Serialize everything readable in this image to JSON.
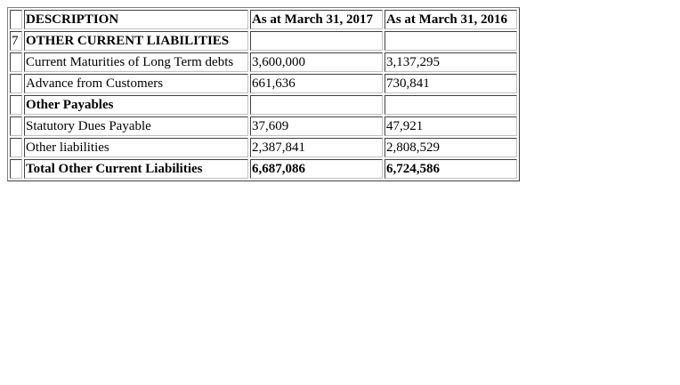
{
  "table": {
    "header": {
      "num": "",
      "description": "DESCRIPTION",
      "col_2017": "As at March 31, 2017",
      "col_2016": "As at March 31, 2016"
    },
    "rows": [
      {
        "num": "7",
        "description": "OTHER CURRENT LIABILITIES",
        "v2017": "",
        "v2016": "",
        "bold": true
      },
      {
        "num": "",
        "description": "Current Maturities of Long Term debts",
        "v2017": "3,600,000",
        "v2016": "3,137,295",
        "bold": false
      },
      {
        "num": "",
        "description": "Advance from Customers",
        "v2017": "661,636",
        "v2016": "730,841",
        "bold": false
      },
      {
        "num": "",
        "description": "Other Payables",
        "v2017": "",
        "v2016": "",
        "bold": true
      },
      {
        "num": "",
        "description": "Statutory Dues Payable",
        "v2017": "37,609",
        "v2016": "47,921",
        "bold": false
      },
      {
        "num": "",
        "description": "Other liabilities",
        "v2017": "2,387,841",
        "v2016": "2,808,529",
        "bold": false
      },
      {
        "num": "",
        "description": "Total Other Current Liabilities",
        "v2017": "6,687,086",
        "v2016": "6,724,586",
        "bold": true
      }
    ]
  }
}
